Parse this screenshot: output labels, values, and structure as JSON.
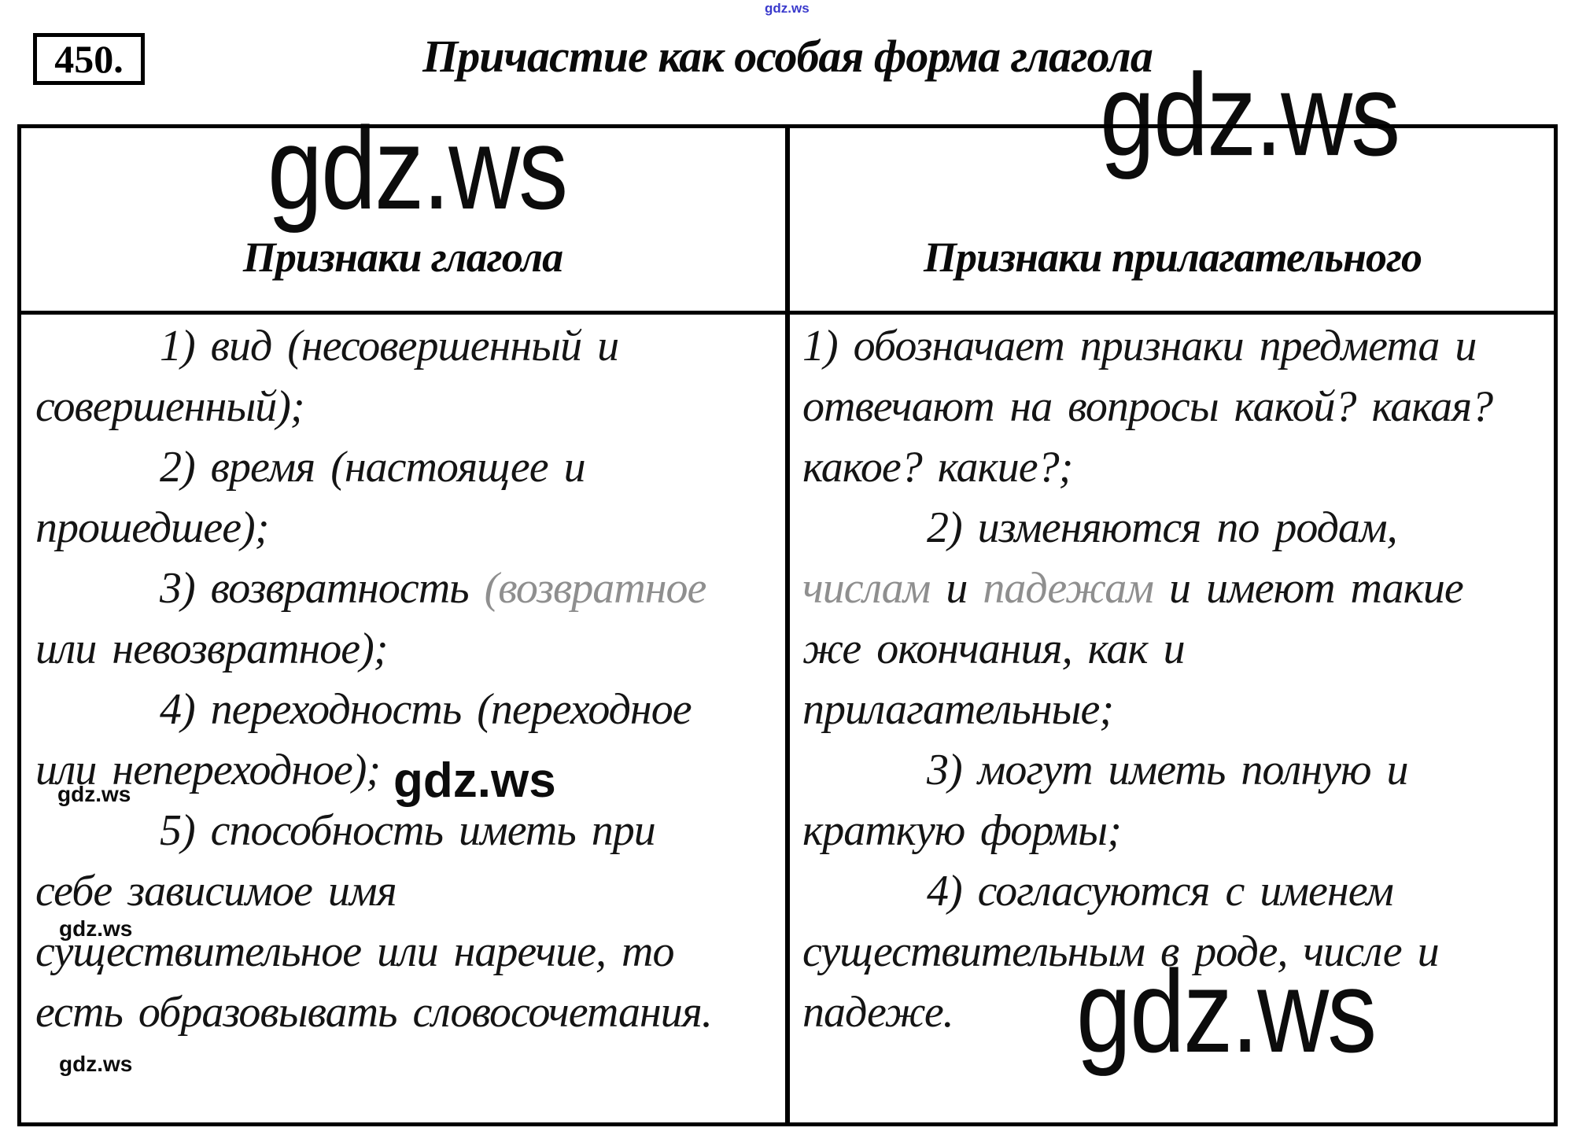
{
  "exercise_number": "450.",
  "title": "Причастие как особая форма глагола",
  "watermarks": {
    "brand": "gdz.ws",
    "blue_color": "#3a3acc"
  },
  "table": {
    "left_header": "Признаки глагола",
    "right_header": "Признаки прилагательного",
    "left_lines": [
      {
        "text": "1) вид (несовершенный и",
        "indent": true
      },
      {
        "text": "совершенный);"
      },
      {
        "text": "2) время (настоящее и",
        "indent": true
      },
      {
        "text": "прошедшее);"
      },
      {
        "indent": true,
        "parts": [
          {
            "text": "3) возвратность ",
            "gray": false
          },
          {
            "text": "(возвратное",
            "gray": true
          }
        ]
      },
      {
        "text": "или невозвратное);"
      },
      {
        "text": "4) переходность (переходное",
        "indent": true
      },
      {
        "text": "или непереходное);"
      },
      {
        "text": "5) способность иметь при",
        "indent": true
      },
      {
        "text": "себе зависимое имя"
      },
      {
        "text": "существительное или наречие, то"
      },
      {
        "text": "есть образовывать словосочетания."
      }
    ],
    "right_lines": [
      {
        "text": "1) обозначает признаки предмета и"
      },
      {
        "text": "отвечают на вопросы какой? какая?"
      },
      {
        "text": "какое? какие?;"
      },
      {
        "text": "2) изменяются по родам,",
        "indent": true
      },
      {
        "parts": [
          {
            "text": "числам",
            "gray": true
          },
          {
            "text": " и ",
            "gray": false
          },
          {
            "text": "падежам",
            "gray": true
          },
          {
            "text": " и имеют такие",
            "gray": false
          }
        ]
      },
      {
        "text": "же окончания, как и"
      },
      {
        "text": "прилагательные;"
      },
      {
        "text": "3) могут иметь полную и",
        "indent": true
      },
      {
        "text": "краткую формы;"
      },
      {
        "text": "4) согласуются с именем",
        "indent": true
      },
      {
        "text": "существительным в роде, числе и"
      },
      {
        "text": "падеже."
      }
    ]
  }
}
